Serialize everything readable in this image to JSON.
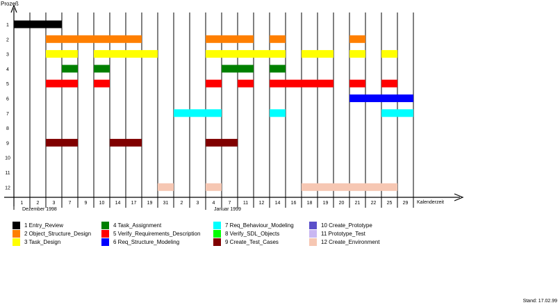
{
  "chart_data": {
    "type": "gantt",
    "ylabel": "Prozeß",
    "xlabel": "Kalenderzeit",
    "y_ticks": [
      "1",
      "2",
      "3",
      "4",
      "5",
      "6",
      "7",
      "8",
      "9",
      "10",
      "11",
      "12"
    ],
    "x_ticks": [
      "1",
      "2",
      "3",
      "7",
      "9",
      "10",
      "14",
      "17",
      "19",
      "31",
      "2",
      "3",
      "4",
      "7",
      "11",
      "12",
      "14",
      "16",
      "18",
      "19",
      "20",
      "21",
      "22",
      "25",
      "29"
    ],
    "month_labels": [
      {
        "text": "Dezember 1998",
        "start_slot": 0
      },
      {
        "text": "Januar 1999",
        "start_slot": 12
      }
    ],
    "processes": [
      {
        "id": 1,
        "name": "Entry_Review",
        "color": "#000000",
        "slots": [
          [
            0,
            3
          ]
        ]
      },
      {
        "id": 2,
        "name": "Object_Structure_Design",
        "color": "#ff7f00",
        "slots": [
          [
            2,
            8
          ],
          [
            12,
            15
          ],
          [
            16,
            17
          ],
          [
            21,
            22
          ]
        ]
      },
      {
        "id": 3,
        "name": "Task_Design",
        "color": "#ffff00",
        "slots": [
          [
            2,
            4
          ],
          [
            5,
            9
          ],
          [
            12,
            17
          ],
          [
            18,
            20
          ],
          [
            21,
            22
          ],
          [
            23,
            24
          ]
        ]
      },
      {
        "id": 4,
        "name": "Task_Assignment",
        "color": "#008000",
        "slots": [
          [
            3,
            4
          ],
          [
            5,
            6
          ],
          [
            13,
            15
          ],
          [
            16,
            17
          ]
        ]
      },
      {
        "id": 5,
        "name": "Verify_Requirements_Description",
        "color": "#ff0000",
        "slots": [
          [
            2,
            4
          ],
          [
            5,
            6
          ],
          [
            12,
            13
          ],
          [
            14,
            15
          ],
          [
            16,
            20
          ],
          [
            21,
            22
          ],
          [
            23,
            24
          ]
        ]
      },
      {
        "id": 6,
        "name": "Req_Structure_Modeling",
        "color": "#0000ff",
        "slots": [
          [
            21,
            25
          ]
        ]
      },
      {
        "id": 7,
        "name": "Req_Behaviour_Modeling",
        "color": "#00ffff",
        "slots": [
          [
            10,
            13
          ],
          [
            16,
            17
          ],
          [
            23,
            25
          ]
        ]
      },
      {
        "id": 8,
        "name": "Verify_SDL_Objects",
        "color": "#00ff00",
        "slots": []
      },
      {
        "id": 9,
        "name": "Create_Test_Cases",
        "color": "#800000",
        "slots": [
          [
            2,
            4
          ],
          [
            6,
            8
          ],
          [
            12,
            14
          ]
        ]
      },
      {
        "id": 10,
        "name": "Create_Prototype",
        "color": "#5a4fc9",
        "slots": []
      },
      {
        "id": 11,
        "name": "Prototype_Test",
        "color": "#c9b7f2",
        "slots": []
      },
      {
        "id": 12,
        "name": "Create_Environment",
        "color": "#f6c7b3",
        "slots": [
          [
            9,
            10
          ],
          [
            12,
            13
          ],
          [
            18,
            24
          ]
        ]
      }
    ],
    "legend_placement": "bottom",
    "grid": true
  },
  "legend": [
    {
      "label": "1  Entry_Review",
      "color": "#000000"
    },
    {
      "label": "2  Object_Structure_Design",
      "color": "#ff7f00"
    },
    {
      "label": "3  Task_Design",
      "color": "#ffff00"
    },
    {
      "label": "4  Task_Assignment",
      "color": "#008000"
    },
    {
      "label": "5  Verify_Requirements_Description",
      "color": "#ff0000"
    },
    {
      "label": "6  Req_Structure_Modeling",
      "color": "#0000ff"
    },
    {
      "label": "7  Req_Behaviour_Modeling",
      "color": "#00ffff"
    },
    {
      "label": "8  Verify_SDL_Objects",
      "color": "#00ff00"
    },
    {
      "label": "9  Create_Test_Cases",
      "color": "#800000"
    },
    {
      "label": "10  Create_Prototype",
      "color": "#5a4fc9"
    },
    {
      "label": "11  Prototype_Test",
      "color": "#c9b7f2"
    },
    {
      "label": "12  Create_Environment",
      "color": "#f6c7b3"
    }
  ],
  "footer": {
    "stand": "Stand: 17.02.99"
  }
}
